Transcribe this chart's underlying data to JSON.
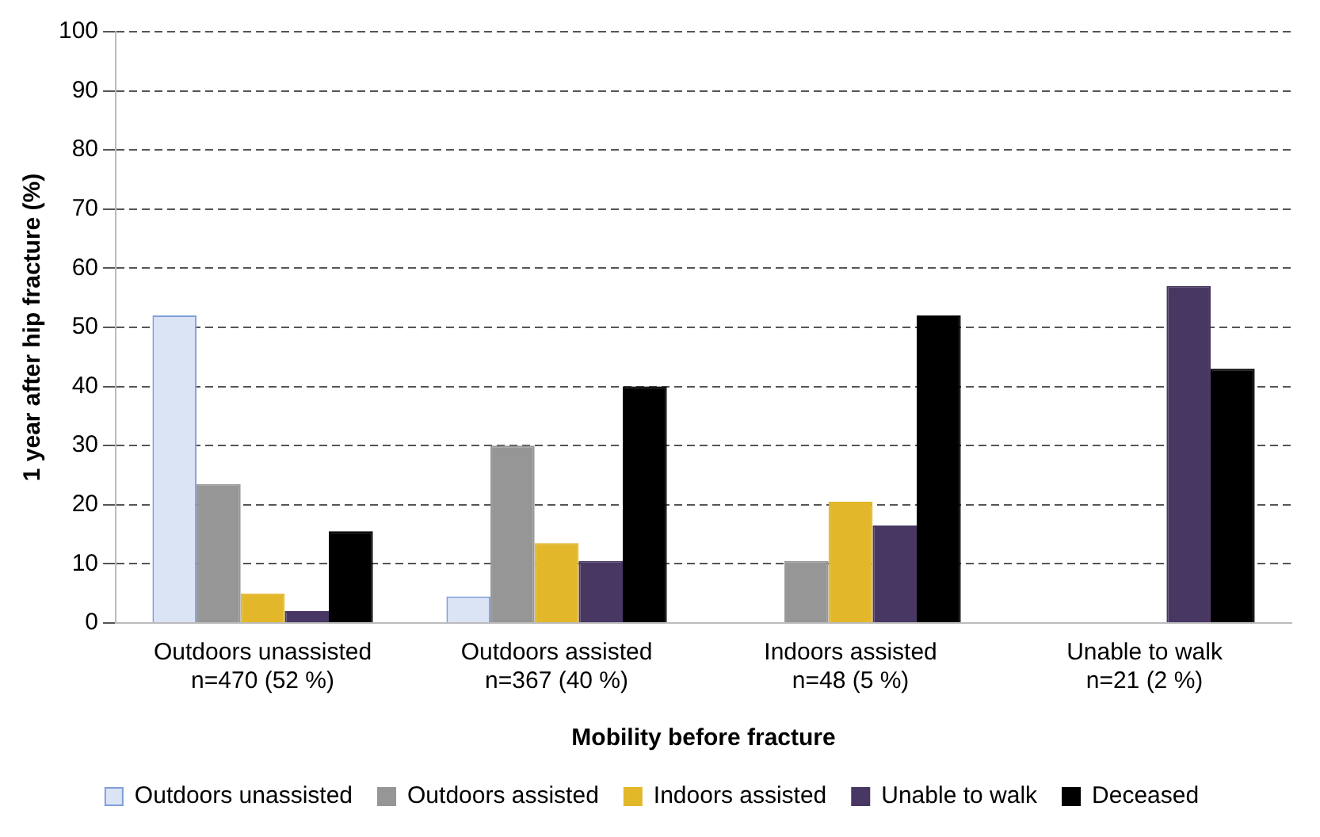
{
  "chart_data": {
    "type": "bar",
    "xlabel": "Mobility before fracture",
    "ylabel": "1 year after hip fracture (%)",
    "categories": [
      "Outdoors unassisted\nn=470 (52 %)",
      "Outdoors assisted\nn=367 (40 %)",
      "Indoors assisted\nn=48 (5 %)",
      "Unable to walk\nn=21 (2 %)"
    ],
    "series": [
      {
        "name": "Outdoors unassisted",
        "color": "#dbe4f5",
        "values": [
          52,
          4.5,
          0,
          0
        ]
      },
      {
        "name": "Outdoors assisted",
        "color": "#969696",
        "values": [
          23.5,
          30,
          10.5,
          0
        ]
      },
      {
        "name": "Indoors assisted",
        "color": "#e3b72a",
        "values": [
          5,
          13.5,
          20.5,
          0
        ]
      },
      {
        "name": "Unable to walk",
        "color": "#483762",
        "values": [
          2,
          10.5,
          16.5,
          57
        ]
      },
      {
        "name": "Deceased",
        "color": "#000000",
        "values": [
          15.5,
          40,
          52,
          43
        ]
      }
    ],
    "ylim": [
      0,
      100
    ],
    "yticks": [
      0,
      10,
      20,
      30,
      40,
      50,
      60,
      70,
      80,
      90,
      100
    ],
    "grid": "y",
    "legend": "bottom"
  }
}
